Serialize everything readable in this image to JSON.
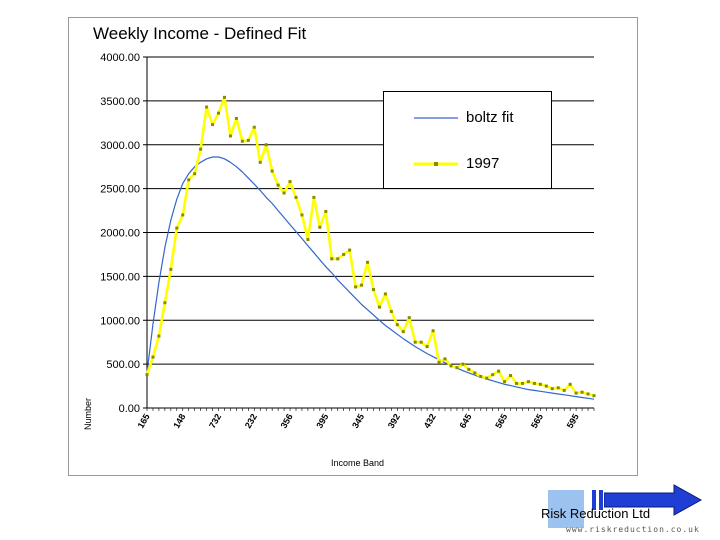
{
  "chart_data": {
    "type": "line",
    "title": "Weekly Income - Defined Fit",
    "xlabel": "Income Band",
    "ylabel": "Number",
    "ylim": [
      0,
      4000
    ],
    "ytick_values": [
      0,
      500,
      1000,
      1500,
      2000,
      2500,
      3000,
      3500,
      4000
    ],
    "ytick_labels": [
      "0.00",
      "500.00",
      "1000.00",
      "1500.00",
      "2000.00",
      "2500.00",
      "3000.00",
      "3500.00",
      "4000.00"
    ],
    "gridlines": "horizontal",
    "legend_position": "top-right",
    "x": [
      0,
      1,
      2,
      3,
      4,
      5,
      6,
      7,
      8,
      9,
      10,
      11,
      12,
      13,
      14,
      15,
      16,
      17,
      18,
      19,
      20,
      21,
      22,
      23,
      24,
      25,
      26,
      27,
      28,
      29,
      30,
      31,
      32,
      33,
      34,
      35,
      36,
      37,
      38,
      39,
      40,
      41,
      42,
      43,
      44,
      45,
      46,
      47,
      48,
      49,
      50,
      51,
      52,
      53,
      54,
      55,
      56,
      57,
      58,
      59,
      60,
      61,
      62,
      63,
      64,
      65,
      66,
      67,
      68,
      69,
      70,
      71,
      72,
      73,
      74,
      75
    ],
    "xtick_indices": [
      0,
      6,
      12,
      18,
      24,
      30,
      36,
      42,
      48,
      54,
      60,
      66,
      72
    ],
    "xtick_labels": [
      "165",
      "148",
      "732",
      "232",
      "356",
      "395",
      "345",
      "392",
      "432",
      "645",
      "565",
      "565",
      "595"
    ],
    "series": [
      {
        "name": "boltz fit",
        "color": "#3366cc",
        "marker": "none",
        "values": [
          400,
          960,
          1430,
          1830,
          2140,
          2380,
          2560,
          2670,
          2750,
          2800,
          2840,
          2860,
          2860,
          2840,
          2800,
          2750,
          2690,
          2620,
          2550,
          2480,
          2400,
          2330,
          2250,
          2170,
          2090,
          2010,
          1930,
          1850,
          1770,
          1690,
          1610,
          1540,
          1460,
          1390,
          1320,
          1250,
          1180,
          1120,
          1060,
          1000,
          940,
          890,
          840,
          790,
          745,
          700,
          660,
          620,
          585,
          550,
          515,
          485,
          455,
          425,
          400,
          375,
          350,
          330,
          310,
          290,
          270,
          255,
          240,
          225,
          210,
          200,
          190,
          180,
          170,
          160,
          150,
          140,
          130,
          120,
          110,
          100
        ]
      },
      {
        "name": "1997",
        "color": "#ffff00",
        "marker": "dot",
        "values": [
          380,
          580,
          820,
          1200,
          1580,
          2050,
          2200,
          2600,
          2670,
          2950,
          3430,
          3230,
          3360,
          3540,
          3100,
          3300,
          3040,
          3050,
          3200,
          2800,
          3000,
          2700,
          2540,
          2450,
          2580,
          2400,
          2200,
          1920,
          2400,
          2060,
          2240,
          1700,
          1700,
          1750,
          1800,
          1380,
          1400,
          1660,
          1350,
          1150,
          1300,
          1100,
          950,
          870,
          1030,
          750,
          750,
          700,
          880,
          520,
          560,
          480,
          460,
          500,
          440,
          400,
          360,
          340,
          380,
          420,
          300,
          370,
          280,
          280,
          300,
          280,
          270,
          250,
          220,
          230,
          200,
          270,
          170,
          180,
          160,
          140
        ]
      }
    ]
  },
  "legend": {
    "entries": [
      {
        "label": "boltz fit",
        "color": "#3366cc"
      },
      {
        "label": "1997",
        "color": "#ffff00"
      }
    ]
  },
  "logo": {
    "name": "Risk Reduction Ltd",
    "url": "www.riskreduction.co.uk",
    "arrow_color": "#1f3fd4",
    "square_color": "#9cc3f0"
  }
}
